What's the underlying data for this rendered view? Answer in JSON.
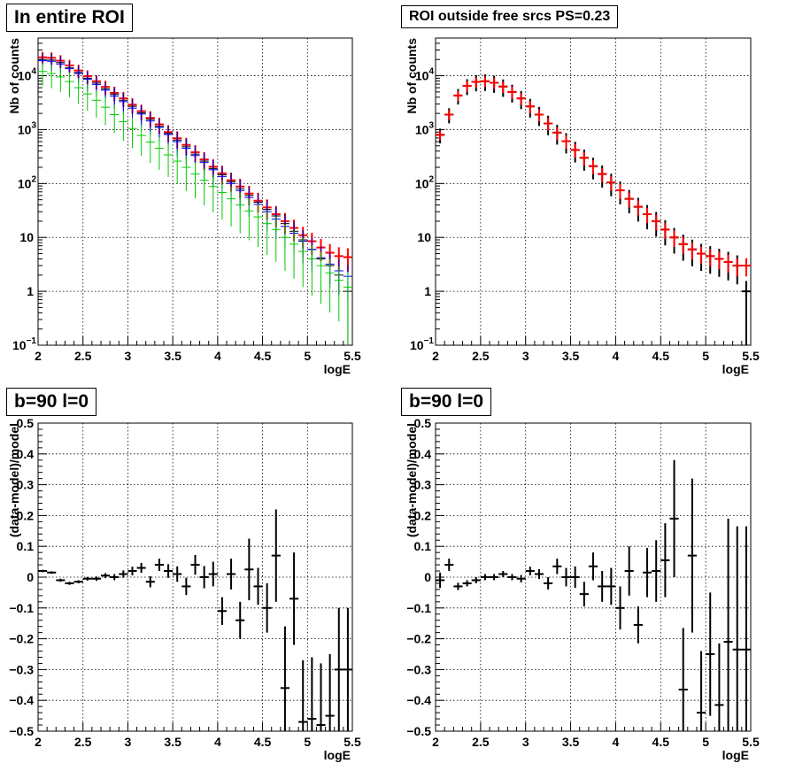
{
  "chart_data": [
    {
      "type": "scatter",
      "title": "In entire ROI",
      "xlabel": "logE",
      "ylabel": "Nb of counts",
      "xlim": [
        2,
        5.5
      ],
      "ylim": [
        0.1,
        50000
      ],
      "yscale": "log",
      "grid": true,
      "x_ticks": [
        "2",
        "2.5",
        "3",
        "3.5",
        "4",
        "4.5",
        "5",
        "5.5"
      ],
      "y_ticks": [
        {
          "value": 0.1,
          "base": "10",
          "exp": "−1"
        },
        {
          "value": 1,
          "label": "1"
        },
        {
          "value": 10,
          "label": "10"
        },
        {
          "value": 100,
          "base": "10",
          "exp": "2"
        },
        {
          "value": 1000,
          "base": "10",
          "exp": "3"
        },
        {
          "value": 10000,
          "base": "10",
          "exp": "4"
        }
      ],
      "x": [
        2.05,
        2.15,
        2.25,
        2.35,
        2.45,
        2.55,
        2.65,
        2.75,
        2.85,
        2.95,
        3.05,
        3.15,
        3.25,
        3.35,
        3.45,
        3.55,
        3.65,
        3.75,
        3.85,
        3.95,
        4.05,
        4.15,
        4.25,
        4.35,
        4.45,
        4.55,
        4.65,
        4.75,
        4.85,
        4.95,
        5.05,
        5.15,
        5.25,
        5.35,
        5.45
      ],
      "series": [
        {
          "color": "#ff0000",
          "lw": 2,
          "values": [
            22000,
            21500,
            19000,
            15500,
            12500,
            9800,
            7900,
            6200,
            4800,
            3800,
            2900,
            2200,
            1650,
            1250,
            900,
            690,
            520,
            380,
            280,
            205,
            155,
            115,
            88,
            65,
            48,
            36,
            27,
            20,
            15,
            11,
            8.5,
            6.5,
            5.2,
            4.5,
            4.3
          ],
          "errfrac": 0.25
        },
        {
          "color": "#000000",
          "lw": 1,
          "values": [
            20000,
            19500,
            17500,
            14000,
            11500,
            9000,
            7300,
            5700,
            4500,
            3500,
            2700,
            2050,
            1550,
            1150,
            850,
            640,
            480,
            350,
            260,
            190,
            145,
            108,
            80,
            60,
            45,
            33,
            25,
            18,
            13,
            9,
            6,
            4,
            3,
            2,
            1
          ],
          "errfrac": 0.3
        },
        {
          "color": "#0000ff",
          "lw": 1,
          "values": [
            19000,
            18500,
            16500,
            13500,
            11000,
            8600,
            6900,
            5400,
            4200,
            3300,
            2500,
            1950,
            1450,
            1100,
            810,
            600,
            450,
            330,
            245,
            180,
            135,
            100,
            74,
            55,
            41,
            30,
            22,
            16,
            12,
            8.5,
            6,
            4.2,
            3.2,
            2.4,
            1.9
          ],
          "errfrac": 0.35
        },
        {
          "color": "#00cc00",
          "lw": 1,
          "values": [
            12000,
            11000,
            9500,
            7800,
            6000,
            4600,
            3500,
            2600,
            1900,
            1400,
            1050,
            780,
            590,
            450,
            340,
            260,
            200,
            150,
            115,
            88,
            68,
            52,
            40,
            31,
            24,
            18,
            14,
            10,
            7.5,
            5.5,
            4,
            3,
            2.2,
            1.6,
            1.2
          ],
          "errfrac": 0.45
        }
      ]
    },
    {
      "type": "scatter",
      "title": "ROI outside free srcs PS=0.23",
      "xlabel": "logE",
      "ylabel": "Nb of counts",
      "xlim": [
        2,
        5.5
      ],
      "ylim": [
        0.1,
        50000
      ],
      "yscale": "log",
      "grid": true,
      "x_ticks": [
        "2",
        "2.5",
        "3",
        "3.5",
        "4",
        "4.5",
        "5",
        "5.5"
      ],
      "y_ticks": [
        {
          "value": 0.1,
          "base": "10",
          "exp": "−1"
        },
        {
          "value": 1,
          "label": "1"
        },
        {
          "value": 10,
          "label": "10"
        },
        {
          "value": 100,
          "base": "10",
          "exp": "2"
        },
        {
          "value": 1000,
          "base": "10",
          "exp": "3"
        },
        {
          "value": 10000,
          "base": "10",
          "exp": "4"
        }
      ],
      "x": [
        2.05,
        2.15,
        2.25,
        2.35,
        2.45,
        2.55,
        2.65,
        2.75,
        2.85,
        2.95,
        3.05,
        3.15,
        3.25,
        3.35,
        3.45,
        3.55,
        3.65,
        3.75,
        3.85,
        3.95,
        4.05,
        4.15,
        4.25,
        4.35,
        4.45,
        4.55,
        4.65,
        4.75,
        4.85,
        4.95,
        5.05,
        5.15,
        5.25,
        5.35,
        5.45
      ],
      "series": [
        {
          "color": "#000000",
          "lw": 2,
          "values": [
            800,
            1900,
            4300,
            6500,
            7700,
            7900,
            7400,
            6300,
            5000,
            3800,
            2700,
            1900,
            1300,
            880,
            610,
            420,
            300,
            210,
            150,
            105,
            75,
            52,
            37,
            27,
            20,
            14,
            10,
            7.5,
            6,
            5,
            4.5,
            4,
            3.5,
            3,
            1
          ],
          "errfrac": 0.3
        },
        {
          "color": "#ff0000",
          "lw": 2,
          "values": [
            800,
            1900,
            4300,
            6500,
            7700,
            7900,
            7400,
            6300,
            5000,
            3800,
            2700,
            1900,
            1300,
            880,
            610,
            420,
            300,
            210,
            150,
            105,
            75,
            52,
            37,
            27,
            20,
            14,
            10,
            7.5,
            6,
            5,
            4.5,
            4,
            3.5,
            3,
            3
          ],
          "errfrac": 0.2
        }
      ]
    },
    {
      "type": "scatter",
      "title": "b=90 l=0",
      "xlabel": "logE",
      "ylabel": "(data-model)/model",
      "xlim": [
        2,
        5.5
      ],
      "ylim": [
        -0.5,
        0.5
      ],
      "grid": true,
      "x_ticks": [
        "2",
        "2.5",
        "3",
        "3.5",
        "4",
        "4.5",
        "5",
        "5.5"
      ],
      "y_ticks": [
        {
          "value": -0.5,
          "label": "−0.5"
        },
        {
          "value": -0.4,
          "label": "−0.4"
        },
        {
          "value": -0.3,
          "label": "−0.3"
        },
        {
          "value": -0.2,
          "label": "−0.2"
        },
        {
          "value": -0.1,
          "label": "−0.1"
        },
        {
          "value": 0,
          "label": "0"
        },
        {
          "value": 0.1,
          "label": "0.1"
        },
        {
          "value": 0.2,
          "label": "0.2"
        },
        {
          "value": 0.3,
          "label": "0.3"
        },
        {
          "value": 0.4,
          "label": "0.4"
        },
        {
          "value": 0.5,
          "label": "0.5"
        }
      ],
      "x": [
        2.05,
        2.15,
        2.25,
        2.35,
        2.45,
        2.55,
        2.65,
        2.75,
        2.85,
        2.95,
        3.05,
        3.15,
        3.25,
        3.35,
        3.45,
        3.55,
        3.65,
        3.75,
        3.85,
        3.95,
        4.05,
        4.15,
        4.25,
        4.35,
        4.45,
        4.55,
        4.65,
        4.75,
        4.85,
        4.95,
        5.05,
        5.15,
        5.25,
        5.35,
        5.45
      ],
      "series": [
        {
          "color": "#000000",
          "lw": 2,
          "values": [
            0.02,
            0.015,
            -0.01,
            -0.02,
            -0.015,
            -0.005,
            -0.005,
            0.005,
            0.0,
            0.01,
            0.02,
            0.03,
            -0.015,
            0.04,
            0.02,
            0.01,
            -0.03,
            0.04,
            0.0,
            0.01,
            -0.11,
            0.01,
            -0.14,
            0.025,
            -0.03,
            -0.1,
            0.07,
            -0.36,
            -0.07,
            -0.47,
            -0.46,
            -0.48,
            -0.45,
            -0.3,
            -0.3
          ],
          "err": [
            0.004,
            0.004,
            0.005,
            0.005,
            0.005,
            0.006,
            0.007,
            0.008,
            0.01,
            0.012,
            0.014,
            0.016,
            0.018,
            0.02,
            0.022,
            0.025,
            0.028,
            0.032,
            0.036,
            0.04,
            0.045,
            0.05,
            0.06,
            0.1,
            0.06,
            0.08,
            0.15,
            0.2,
            0.15,
            0.2,
            0.2,
            0.2,
            0.2,
            0.2,
            0.2
          ]
        }
      ]
    },
    {
      "type": "scatter",
      "title": "b=90 l=0",
      "xlabel": "logE",
      "ylabel": "(data-model)/model",
      "xlim": [
        2,
        5.5
      ],
      "ylim": [
        -0.5,
        0.5
      ],
      "grid": true,
      "x_ticks": [
        "2",
        "2.5",
        "3",
        "3.5",
        "4",
        "4.5",
        "5",
        "5.5"
      ],
      "y_ticks": [
        {
          "value": -0.5,
          "label": "−0.5"
        },
        {
          "value": -0.4,
          "label": "−0.4"
        },
        {
          "value": -0.3,
          "label": "−0.3"
        },
        {
          "value": -0.2,
          "label": "−0.2"
        },
        {
          "value": -0.1,
          "label": "−0.1"
        },
        {
          "value": 0,
          "label": "0"
        },
        {
          "value": 0.1,
          "label": "0.1"
        },
        {
          "value": 0.2,
          "label": "0.2"
        },
        {
          "value": 0.3,
          "label": "0.3"
        },
        {
          "value": 0.4,
          "label": "0.4"
        },
        {
          "value": 0.5,
          "label": "0.5"
        }
      ],
      "x": [
        2.05,
        2.15,
        2.25,
        2.35,
        2.45,
        2.55,
        2.65,
        2.75,
        2.85,
        2.95,
        3.05,
        3.15,
        3.25,
        3.35,
        3.45,
        3.55,
        3.65,
        3.75,
        3.85,
        3.95,
        4.05,
        4.15,
        4.25,
        4.35,
        4.45,
        4.55,
        4.65,
        4.75,
        4.85,
        4.95,
        5.05,
        5.15,
        5.25,
        5.35,
        5.45
      ],
      "series": [
        {
          "color": "#000000",
          "lw": 2,
          "values": [
            -0.01,
            0.04,
            -0.03,
            -0.02,
            -0.01,
            0.0,
            0.0,
            0.01,
            0.0,
            -0.005,
            0.02,
            0.01,
            -0.02,
            0.035,
            0.0,
            0.0,
            -0.055,
            0.035,
            -0.03,
            -0.03,
            -0.1,
            0.02,
            -0.155,
            0.015,
            0.02,
            0.055,
            0.19,
            -0.365,
            0.07,
            -0.44,
            -0.25,
            -0.415,
            -0.21,
            -0.235,
            -0.235
          ],
          "err": [
            0.025,
            0.02,
            0.012,
            0.01,
            0.01,
            0.01,
            0.01,
            0.01,
            0.01,
            0.012,
            0.014,
            0.016,
            0.02,
            0.025,
            0.03,
            0.035,
            0.04,
            0.045,
            0.05,
            0.06,
            0.07,
            0.08,
            0.06,
            0.08,
            0.1,
            0.12,
            0.19,
            0.2,
            0.25,
            0.2,
            0.2,
            0.2,
            0.4,
            0.4,
            0.4
          ]
        }
      ]
    }
  ]
}
